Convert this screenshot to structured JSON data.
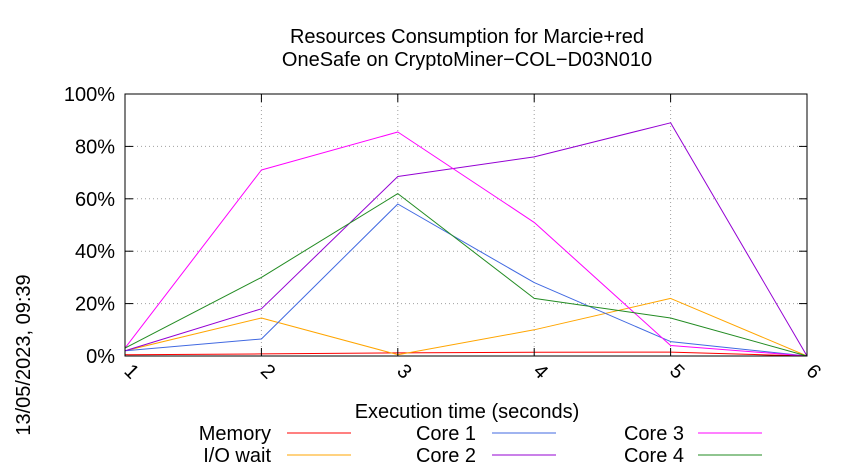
{
  "side_label": "13/05/2023, 09:39",
  "chart_data": {
    "type": "line",
    "title": [
      "Resources Consumption for Marcie+red",
      "OneSafe on CryptoMiner−COL−D03N010"
    ],
    "xlabel": "Execution time (seconds)",
    "ylabel": "",
    "x": [
      1,
      2,
      3,
      4,
      5,
      6
    ],
    "xlim": [
      1,
      6
    ],
    "ylim": [
      0,
      100
    ],
    "xticks": [
      "1",
      "2",
      "3",
      "4",
      "5",
      "6"
    ],
    "yticks": [
      {
        "value": 0,
        "label": "0%"
      },
      {
        "value": 20,
        "label": "20%"
      },
      {
        "value": 40,
        "label": "40%"
      },
      {
        "value": 60,
        "label": "60%"
      },
      {
        "value": 80,
        "label": "80%"
      },
      {
        "value": 100,
        "label": "100%"
      }
    ],
    "grid": true,
    "legend_position": "bottom",
    "series": [
      {
        "name": "Memory",
        "color": "#ff0000",
        "values": [
          0.5,
          0.8,
          1.2,
          1.4,
          1.5,
          0
        ]
      },
      {
        "name": "I/O wait",
        "color": "#ffa500",
        "values": [
          2,
          14.5,
          0.5,
          10,
          22,
          0
        ]
      },
      {
        "name": "Core 1",
        "color": "#4169e1",
        "values": [
          2,
          6.5,
          58,
          28,
          5.5,
          0
        ]
      },
      {
        "name": "Core 2",
        "color": "#9400d3",
        "values": [
          2,
          18,
          68.5,
          76,
          89,
          0
        ]
      },
      {
        "name": "Core 3",
        "color": "#ff00ff",
        "values": [
          3,
          71,
          85.5,
          51,
          4,
          0
        ]
      },
      {
        "name": "Core 4",
        "color": "#228b22",
        "values": [
          3,
          30,
          62,
          22,
          14.5,
          0
        ]
      }
    ]
  }
}
